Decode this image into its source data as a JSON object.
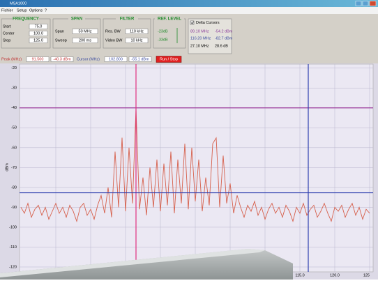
{
  "window": {
    "title": "MSA1000"
  },
  "menu": [
    "Fichier",
    "Setup",
    "Options",
    "?"
  ],
  "frequency": {
    "title": "FREQUENCY",
    "rows": [
      {
        "label": "Start",
        "value": "75.0"
      },
      {
        "label": "Center",
        "value": "100.0"
      },
      {
        "label": "Stop",
        "value": "125.0"
      }
    ]
  },
  "span": {
    "title": "SPAN",
    "rows": [
      {
        "label": "Span",
        "value": "50 MHz"
      },
      {
        "label": "Sweep",
        "value": "200 ms"
      }
    ]
  },
  "filter": {
    "title": "FILTER",
    "rows": [
      {
        "label": "Res. BW",
        "value": "110 kHz"
      },
      {
        "label": "Video BW",
        "value": "10 kHz"
      }
    ]
  },
  "ref_level": {
    "title": "REF. LEVEL",
    "values": [
      "-23dB",
      "-33dB"
    ]
  },
  "delta_cursors": {
    "label": "Delta Cursors",
    "rows": [
      [
        "89.10 MHz",
        "-54.2 dBm"
      ],
      [
        "116.20 MHz",
        "-82.7 dBm"
      ],
      [
        "27.10 MHz",
        "28.6 dB"
      ]
    ]
  },
  "status": {
    "peak_label": "Peak (MHz)",
    "peak_freq": "91.500",
    "peak_level": "-40.3 dBm",
    "cursor_label": "Cursor (MHz)",
    "cursor_freq": "102.800",
    "cursor_level": "-55.1 dBm",
    "button": "Run / Stop"
  },
  "chart_data": {
    "type": "line",
    "y_label": "dBm",
    "x": [
      75,
      75.5,
      76,
      76.5,
      77,
      77.5,
      78,
      78.5,
      79,
      79.5,
      80,
      80.5,
      81,
      81.5,
      82,
      82.5,
      83,
      83.5,
      84,
      84.5,
      85,
      85.5,
      86,
      86.5,
      87,
      87.5,
      88,
      88.5,
      89,
      89.5,
      90,
      90.5,
      91,
      91.5,
      92,
      92.5,
      93,
      93.5,
      94,
      94.5,
      95,
      95.5,
      96,
      96.5,
      97,
      97.5,
      98,
      98.5,
      99,
      99.5,
      100,
      100.5,
      101,
      101.5,
      102,
      102.5,
      103,
      103.5,
      104,
      104.5,
      105,
      105.5,
      106,
      106.5,
      107,
      107.5,
      108,
      108.5,
      109,
      109.5,
      110,
      110.5,
      111,
      111.5,
      112,
      112.5,
      113,
      113.5,
      114,
      114.5,
      115,
      115.5,
      116,
      116.5,
      117,
      117.5,
      118,
      118.5,
      119,
      119.5,
      120,
      120.5,
      121,
      121.5,
      122,
      122.5,
      123,
      123.5,
      124,
      124.5,
      125
    ],
    "series": [
      {
        "color": "#d6604c",
        "values": [
          -90,
          -93,
          -88,
          -95,
          -91,
          -89,
          -94,
          -90,
          -96,
          -92,
          -88,
          -93,
          -90,
          -95,
          -89,
          -92,
          -97,
          -90,
          -88,
          -94,
          -91,
          -96,
          -89,
          -84,
          -93,
          -80,
          -95,
          -62,
          -90,
          -55,
          -92,
          -60,
          -88,
          -40.3,
          -91,
          -75,
          -94,
          -70,
          -90,
          -66,
          -92,
          -68,
          -89,
          -62,
          -93,
          -66,
          -88,
          -58,
          -91,
          -60,
          -87,
          -66,
          -92,
          -75,
          -89,
          -58,
          -55.1,
          -90,
          -64,
          -88,
          -78,
          -93,
          -84,
          -90,
          -95,
          -89,
          -92,
          -87,
          -94,
          -90,
          -96,
          -91,
          -88,
          -93,
          -90,
          -95,
          -89,
          -92,
          -97,
          -90,
          -93,
          -88,
          -94,
          -91,
          -89,
          -95,
          -92,
          -88,
          -93,
          -97,
          -90,
          -92,
          -89,
          -95,
          -91,
          -88,
          -94,
          -90,
          -96,
          -91,
          -93
        ]
      }
    ],
    "xlim": [
      75,
      125
    ],
    "ylim": [
      -120,
      -18
    ],
    "yticks": [
      -20,
      -30,
      -40,
      -50,
      -60,
      -70,
      -80,
      -90,
      -100,
      -110,
      -120
    ],
    "xticks": [
      {
        "value": 115,
        "label": "115.0"
      },
      {
        "value": 120,
        "label": "120.0"
      },
      125
    ],
    "xgrid": [
      80,
      85,
      90,
      95,
      100,
      105,
      110
    ],
    "cursor_lines": [
      {
        "axis": "y",
        "value": -40,
        "color": "#9a3a9a"
      },
      {
        "axis": "x",
        "value": 91.5,
        "color": "#e0307f"
      },
      {
        "axis": "y",
        "value": -82.7,
        "color": "#3040b0"
      },
      {
        "axis": "x",
        "value": 116.2,
        "color": "#3040b0"
      }
    ]
  }
}
